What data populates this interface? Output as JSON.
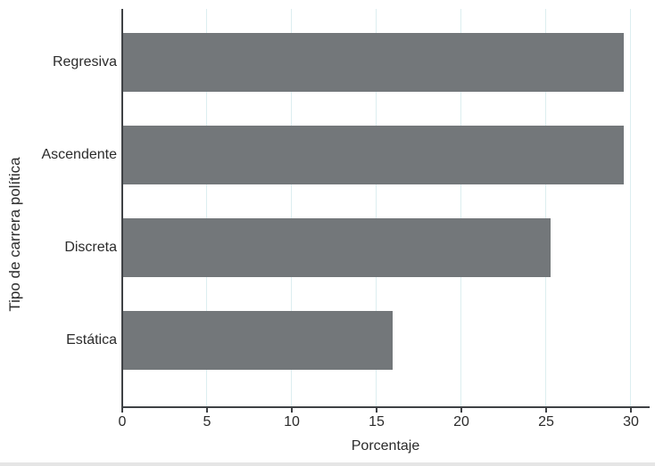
{
  "chart_data": {
    "type": "bar",
    "orientation": "horizontal",
    "title": "",
    "categories": [
      "Regresiva",
      "Ascendente",
      "Discreta",
      "Estática"
    ],
    "values": [
      29.5,
      29.5,
      25.2,
      15.9
    ],
    "xlabel": "Porcentaje",
    "ylabel": "Tipo de carrera política",
    "xticks": [
      0,
      5,
      10,
      15,
      20,
      25,
      30
    ],
    "xlim": [
      0,
      31
    ],
    "grid": "vertical gridlines at each x tick",
    "legend": "none",
    "data_labels": "none",
    "colors": {
      "bar": "#73777a",
      "gridline": "#dceef0",
      "axis": "#3f4245",
      "text": "#2b2b2b"
    }
  }
}
